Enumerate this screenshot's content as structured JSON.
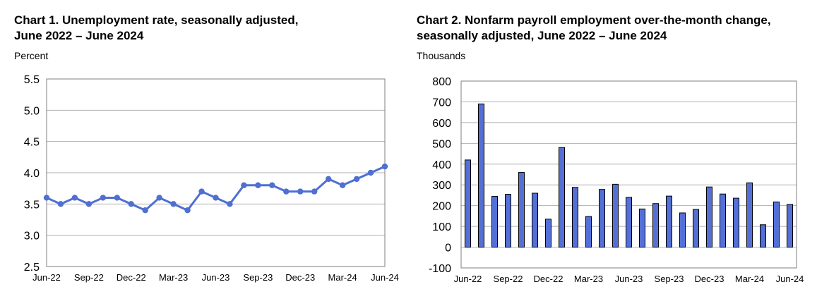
{
  "chart_data": [
    {
      "type": "line",
      "title_lines": [
        "Chart 1. Unemployment rate, seasonally adjusted,",
        "June 2022 – June 2024"
      ],
      "ylabel": "Percent",
      "ylim": [
        2.5,
        5.5
      ],
      "yticks": [
        "2.5",
        "3.0",
        "3.5",
        "4.0",
        "4.5",
        "5.0",
        "5.5"
      ],
      "xtick_labels": [
        "Jun-22",
        "Sep-22",
        "Dec-22",
        "Mar-23",
        "Jun-23",
        "Sep-23",
        "Dec-23",
        "Mar-24",
        "Jun-24"
      ],
      "x": [
        "Jun-22",
        "Jul-22",
        "Aug-22",
        "Sep-22",
        "Oct-22",
        "Nov-22",
        "Dec-22",
        "Jan-23",
        "Feb-23",
        "Mar-23",
        "Apr-23",
        "May-23",
        "Jun-23",
        "Jul-23",
        "Aug-23",
        "Sep-23",
        "Oct-23",
        "Nov-23",
        "Dec-23",
        "Jan-24",
        "Feb-24",
        "Mar-24",
        "Apr-24",
        "May-24",
        "Jun-24"
      ],
      "values": [
        3.6,
        3.5,
        3.6,
        3.5,
        3.6,
        3.6,
        3.5,
        3.4,
        3.6,
        3.5,
        3.4,
        3.7,
        3.6,
        3.5,
        3.8,
        3.8,
        3.8,
        3.7,
        3.7,
        3.7,
        3.9,
        3.8,
        3.9,
        4.0,
        4.1
      ],
      "grid": true,
      "color": "#4f6fd1"
    },
    {
      "type": "bar",
      "title_lines": [
        "Chart 2. Nonfarm payroll employment over-the-month change,",
        "seasonally adjusted, June 2022 – June 2024"
      ],
      "ylabel": "Thousands",
      "ylim": [
        -100,
        800
      ],
      "yticks": [
        "-100",
        "0",
        "100",
        "200",
        "300",
        "400",
        "500",
        "600",
        "700",
        "800"
      ],
      "xtick_labels": [
        "Jun-22",
        "Sep-22",
        "Dec-22",
        "Mar-23",
        "Jun-23",
        "Sep-23",
        "Dec-23",
        "Mar-24",
        "Jun-24"
      ],
      "x": [
        "Jun-22",
        "Jul-22",
        "Aug-22",
        "Sep-22",
        "Oct-22",
        "Nov-22",
        "Dec-22",
        "Jan-23",
        "Feb-23",
        "Mar-23",
        "Apr-23",
        "May-23",
        "Jun-23",
        "Jul-23",
        "Aug-23",
        "Sep-23",
        "Oct-23",
        "Nov-23",
        "Dec-23",
        "Jan-24",
        "Feb-24",
        "Mar-24",
        "Apr-24",
        "May-24",
        "Jun-24"
      ],
      "values": [
        420,
        690,
        245,
        255,
        360,
        260,
        135,
        480,
        288,
        148,
        278,
        303,
        240,
        184,
        210,
        246,
        165,
        182,
        290,
        256,
        236,
        310,
        108,
        218,
        206
      ],
      "grid": true,
      "color": "#5470d6"
    }
  ]
}
